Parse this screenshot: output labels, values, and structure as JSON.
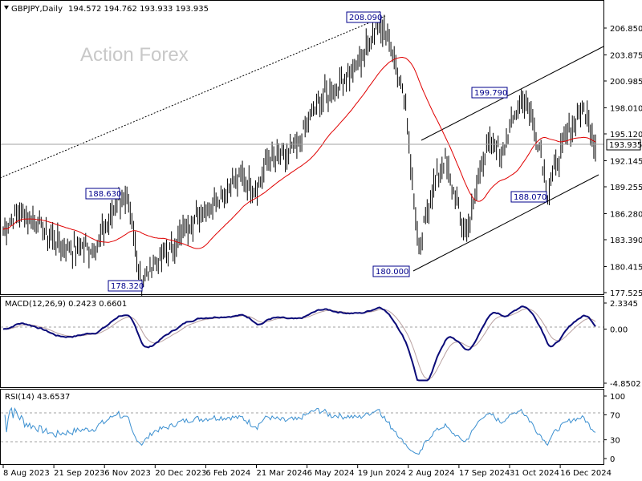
{
  "header": {
    "symbol": "GBPJPY,Daily",
    "ohlc": "194.572 194.762 193.933 193.935"
  },
  "watermark": "Action Forex",
  "colors": {
    "price": "#000000",
    "ma": "#e00000",
    "macd": "#0a0a78",
    "signal": "#b8a0a0",
    "rsi": "#3a8fd0",
    "grid": "#a0a0a0"
  },
  "chart_data": [
    {
      "type": "line",
      "title": "GBPJPY,Daily",
      "series": [
        {
          "name": "GBPJPY",
          "x": [
            "8 Aug 2023",
            "21 Sep 2023",
            "6 Nov 2023",
            "20 Dec 2023",
            "6 Feb 2024",
            "21 Mar 2024",
            "6 May 2024",
            "19 Jun 2024",
            "2 Aug 2024",
            "17 Sep 2024",
            "31 Oct 2024",
            "16 Dec 2024"
          ],
          "values": [
            183.6,
            184.0,
            188.0,
            182.0,
            187.5,
            190.0,
            197.0,
            203.5,
            181.5,
            190.0,
            195.0,
            196.5
          ]
        }
      ],
      "current_price": "193.935",
      "annotations": [
        {
          "text": "208.090",
          "x": "10 Jul 2024",
          "y": 208.09
        },
        {
          "text": "188.630",
          "x": "20 Oct 2023",
          "y": 188.63
        },
        {
          "text": "178.320",
          "x": "12 Nov 2023",
          "y": 178.32
        },
        {
          "text": "180.000",
          "x": "5 Aug 2024",
          "y": 180.0
        },
        {
          "text": "199.790",
          "x": "30 Sep 2024",
          "y": 199.79
        },
        {
          "text": "188.070",
          "x": "20 Nov 2024",
          "y": 188.07
        }
      ],
      "yticks": [
        "206.850",
        "203.875",
        "200.985",
        "198.010",
        "195.120",
        "192.145",
        "189.255",
        "186.280",
        "183.390",
        "180.415",
        "177.525"
      ],
      "ylim": [
        177.525,
        206.85
      ]
    },
    {
      "type": "line",
      "title": "MACD(12,26,9) 0.2423 0.6601",
      "yticks": [
        "2.3345",
        "0.00",
        "-4.8502"
      ],
      "ylim": [
        -4.8502,
        2.3345
      ]
    },
    {
      "type": "line",
      "title": "RSI(14) 43.6537",
      "yticks": [
        "100",
        "70",
        "30",
        "0"
      ],
      "ylim": [
        0,
        100
      ]
    }
  ],
  "xticks": [
    "8 Aug 2023",
    "21 Sep 2023",
    "6 Nov 2023",
    "20 Dec 2023",
    "6 Feb 2024",
    "21 Mar 2024",
    "6 May 2024",
    "19 Jun 2024",
    "2 Aug 2024",
    "17 Sep 2024",
    "31 Oct 2024",
    "16 Dec 2024"
  ]
}
